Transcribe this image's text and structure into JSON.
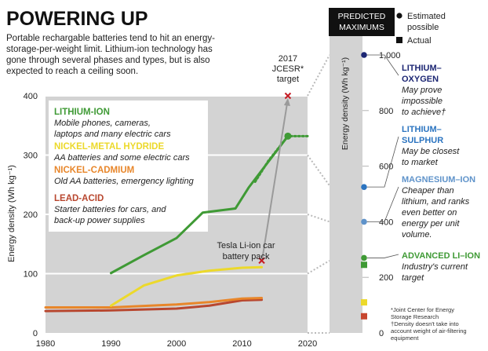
{
  "header": {
    "title": "POWERING UP",
    "subtitle_lines": [
      "Portable rechargable batteries tend to hit an energy-",
      "storage-per-weight limit. Lithium-ion technology has",
      "gone through several phases and types, but is also",
      "expected to reach a ceiling soon."
    ]
  },
  "chart_data": [
    {
      "type": "line",
      "ylabel": "Energy density (Wh kg⁻¹)",
      "xlim": [
        1980,
        2020
      ],
      "ylim": [
        0,
        400
      ],
      "x_ticks": [
        1980,
        1990,
        2000,
        2010,
        2020
      ],
      "y_ticks": [
        0,
        100,
        200,
        300,
        400
      ],
      "grid": "horizontal",
      "series": [
        {
          "name": "LITHIUM-ION",
          "description_lines": [
            "Mobile phones, cameras,",
            "laptops and many electric cars"
          ],
          "color": "#3f9a35",
          "values": [
            [
              1990,
              101
            ],
            [
              1995,
              131
            ],
            [
              2000,
              160
            ],
            [
              2004,
              203
            ],
            [
              2009,
              210
            ],
            [
              2011,
              245
            ],
            [
              2017,
              332
            ]
          ],
          "projection": [
            [
              2012,
              255
            ],
            [
              2014,
              290
            ],
            [
              2017,
              332
            ],
            [
              2020,
              332
            ]
          ]
        },
        {
          "name": "NICKEL-METAL HYDRIDE",
          "description_lines": [
            "AA batteries and some electric cars"
          ],
          "color": "#ecd92b",
          "values": [
            [
              1990,
              46
            ],
            [
              1995,
              80
            ],
            [
              2000,
              97
            ],
            [
              2005,
              105
            ],
            [
              2010,
              110
            ],
            [
              2013,
              111
            ]
          ]
        },
        {
          "name": "NICKEL-CADMIUM",
          "description_lines": [
            "Old AA batteries, emergency lighting"
          ],
          "color": "#e8862a",
          "values": [
            [
              1980,
              43
            ],
            [
              1990,
              43
            ],
            [
              2000,
              48
            ],
            [
              2005,
              52
            ],
            [
              2010,
              58
            ],
            [
              2013,
              59
            ]
          ]
        },
        {
          "name": "LEAD-ACID",
          "description_lines": [
            "Starter batteries for cars, and",
            "back-up power supplies"
          ],
          "color": "#b8472f",
          "values": [
            [
              1980,
              37
            ],
            [
              1990,
              38
            ],
            [
              2000,
              41
            ],
            [
              2005,
              46
            ],
            [
              2010,
              55
            ],
            [
              2013,
              56
            ]
          ]
        }
      ],
      "markers": [
        {
          "label_lines": [
            "Tesla Li-ion car",
            "battery pack"
          ],
          "x": 2013,
          "y": 122,
          "symbol": "x",
          "color": "#c51c24"
        },
        {
          "label_lines": [
            "2017",
            "JCESR*",
            "target"
          ],
          "x": 2017,
          "y": 400,
          "symbol": "x",
          "color": "#c51c24"
        }
      ]
    },
    {
      "type": "scatter",
      "header_lines": [
        "PREDICTED",
        "MAXIMUMS"
      ],
      "ylabel": "Energy density (Wh kg⁻¹)",
      "ylim": [
        0,
        1000
      ],
      "y_ticks": [
        "0",
        "200",
        "400",
        "600",
        "800",
        "1,000"
      ],
      "legend": [
        {
          "symbol": "circle",
          "label_lines": [
            "Estimated",
            "possible"
          ]
        },
        {
          "symbol": "square",
          "label": "Actual"
        }
      ],
      "points": [
        {
          "name": "LITHIUM-OXYGEN",
          "description_lines": [
            "May prove",
            "impossible",
            "to achieve†"
          ],
          "color": "#1c2673",
          "estimated": 1000
        },
        {
          "name": "LITHIUM-SULPHUR",
          "description_lines": [
            "May be closest",
            "to market"
          ],
          "color": "#2b74c0",
          "estimated": 525
        },
        {
          "name": "MAGNESIUM-ION",
          "description_lines": [
            "Cheaper than",
            "lithium, and ranks",
            "even better on",
            "energy per unit",
            "volume."
          ],
          "color": "#5f93ca",
          "estimated": 400
        },
        {
          "name": "ADVANCED LI-ION",
          "description_lines": [
            "Industry's current",
            "target"
          ],
          "color": "#3f9a35",
          "estimated": 270,
          "actual": 245
        },
        {
          "name": "NICKEL-METAL HYDRIDE",
          "color": "#ecd92b",
          "actual": 110
        },
        {
          "name": "LEAD-ACID",
          "color": "#c7472f",
          "actual": 60
        }
      ],
      "footnotes": [
        "*Joint Center for Energy",
        "Storage Research",
        "†Density doesn't take into",
        "account weight of air-filtering",
        "equipment"
      ]
    }
  ]
}
